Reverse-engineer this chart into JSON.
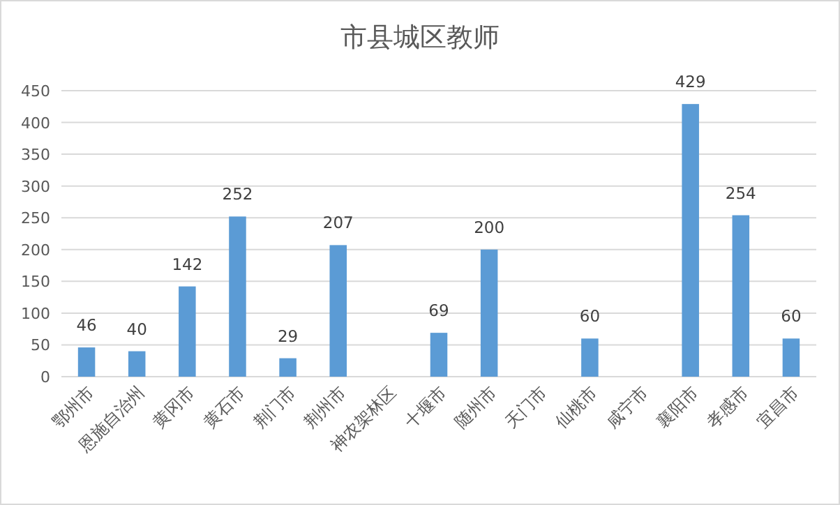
{
  "chart_data": {
    "type": "bar",
    "title": "市县城区教师",
    "categories": [
      "鄂州市",
      "恩施自治州",
      "黄冈市",
      "黄石市",
      "荆门市",
      "荆州市",
      "神农架林区",
      "十堰市",
      "随州市",
      "天门市",
      "仙桃市",
      "咸宁市",
      "襄阳市",
      "孝感市",
      "宜昌市"
    ],
    "values": [
      46,
      40,
      142,
      252,
      29,
      207,
      null,
      69,
      200,
      null,
      60,
      null,
      429,
      254,
      60
    ],
    "color": "#5b9bd5",
    "ylim": [
      0,
      450
    ],
    "yticks": [
      0,
      50,
      100,
      150,
      200,
      250,
      300,
      350,
      400,
      450
    ],
    "grid": "y",
    "data_labels": true
  }
}
